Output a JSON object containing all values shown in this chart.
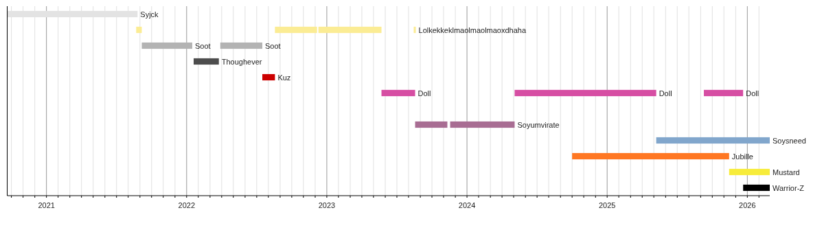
{
  "chart_data": {
    "type": "bar",
    "orientation": "horizontal",
    "categories": [
      null,
      null,
      null,
      null,
      null,
      null,
      null,
      null,
      null,
      null,
      null,
      null
    ],
    "series": [
      {
        "colors": [
          "#e3e3e3",
          "#fbec94",
          "#b3b3b3",
          "#4d4d4d",
          "#cc0000",
          "#d64ea3",
          null,
          "#a86d93",
          "#81a6cc",
          "#ff7722",
          "#f7ec3b",
          "#000000"
        ],
        "base": [
          2020.72,
          2021.64,
          2021.68,
          2022.05,
          2022.54,
          2023.39,
          null,
          2023.63,
          2025.35,
          2024.75,
          2025.87,
          2025.97
        ],
        "values": [
          0.93,
          0.04,
          0.36,
          0.18,
          0.09,
          0.24,
          null,
          0.23,
          0.81,
          1.12,
          0.29,
          0.19
        ],
        "value_labels": [
          "Syjck",
          null,
          "Soot",
          "Thoughever",
          "Kuz",
          "Doll",
          null,
          null,
          "Soysneed",
          "Jubille",
          "Mustard",
          "Warrior-Z"
        ]
      },
      {
        "colors": [
          null,
          "#fbec94",
          "#b3b3b3",
          null,
          null,
          "#d64ea3",
          null,
          "#a86d93",
          null,
          null,
          null,
          null
        ],
        "base": [
          null,
          2022.63,
          2022.24,
          null,
          null,
          2024.34,
          null,
          2023.88,
          null,
          null,
          null,
          null
        ],
        "values": [
          null,
          0.3,
          0.3,
          null,
          null,
          1.01,
          null,
          0.46,
          null,
          null,
          null,
          null
        ],
        "value_labels": [
          null,
          null,
          "Soot",
          null,
          null,
          "Doll",
          null,
          "Soyumvirate",
          null,
          null,
          null,
          null
        ]
      },
      {
        "colors": [
          null,
          "#fbec94",
          null,
          null,
          null,
          "#d64ea3",
          null,
          null,
          null,
          null,
          null,
          null
        ],
        "base": [
          null,
          2022.94,
          null,
          null,
          null,
          2025.69,
          null,
          null,
          null,
          null,
          null,
          null
        ],
        "values": [
          null,
          0.45,
          null,
          null,
          null,
          0.28,
          null,
          null,
          null,
          null,
          null,
          null
        ],
        "value_labels": [
          null,
          null,
          null,
          null,
          null,
          "Doll",
          null,
          null,
          null,
          null,
          null,
          null
        ]
      },
      {
        "colors": [
          null,
          "#fbec94",
          null,
          null,
          null,
          null,
          null,
          null,
          null,
          null,
          null,
          null
        ],
        "base": [
          null,
          2023.62,
          null,
          null,
          null,
          null,
          null,
          null,
          null,
          null,
          null,
          null
        ],
        "values": [
          null,
          0.015,
          null,
          null,
          null,
          null,
          null,
          null,
          null,
          null,
          null,
          null
        ],
        "value_labels": [
          null,
          "Lolkekkeklmaolmaolmaoxdhaha",
          null,
          null,
          null,
          null,
          null,
          null,
          null,
          null,
          null,
          null
        ]
      }
    ],
    "xlim": [
      2020.72,
      2026.16
    ],
    "xticks": [
      {
        "value": 2020.75,
        "label": null
      },
      {
        "value": 2020.833,
        "label": null
      },
      {
        "value": 2020.917,
        "label": null
      },
      2021,
      {
        "value": 2021.083,
        "label": null
      },
      {
        "value": 2021.167,
        "label": null
      },
      {
        "value": 2021.25,
        "label": null
      },
      {
        "value": 2021.333,
        "label": null
      },
      {
        "value": 2021.417,
        "label": null
      },
      {
        "value": 2021.5,
        "label": null
      },
      {
        "value": 2021.583,
        "label": null
      },
      {
        "value": 2021.667,
        "label": null
      },
      {
        "value": 2021.75,
        "label": null
      },
      {
        "value": 2021.833,
        "label": null
      },
      {
        "value": 2021.917,
        "label": null
      },
      2022,
      {
        "value": 2022.083,
        "label": null
      },
      {
        "value": 2022.167,
        "label": null
      },
      {
        "value": 2022.25,
        "label": null
      },
      {
        "value": 2022.333,
        "label": null
      },
      {
        "value": 2022.417,
        "label": null
      },
      {
        "value": 2022.5,
        "label": null
      },
      {
        "value": 2022.583,
        "label": null
      },
      {
        "value": 2022.667,
        "label": null
      },
      {
        "value": 2022.75,
        "label": null
      },
      {
        "value": 2022.833,
        "label": null
      },
      {
        "value": 2022.917,
        "label": null
      },
      2023,
      {
        "value": 2023.083,
        "label": null
      },
      {
        "value": 2023.167,
        "label": null
      },
      {
        "value": 2023.25,
        "label": null
      },
      {
        "value": 2023.333,
        "label": null
      },
      {
        "value": 2023.417,
        "label": null
      },
      {
        "value": 2023.5,
        "label": null
      },
      {
        "value": 2023.583,
        "label": null
      },
      {
        "value": 2023.667,
        "label": null
      },
      {
        "value": 2023.75,
        "label": null
      },
      {
        "value": 2023.833,
        "label": null
      },
      {
        "value": 2023.917,
        "label": null
      },
      2024,
      {
        "value": 2024.083,
        "label": null
      },
      {
        "value": 2024.167,
        "label": null
      },
      {
        "value": 2024.25,
        "label": null
      },
      {
        "value": 2024.333,
        "label": null
      },
      {
        "value": 2024.417,
        "label": null
      },
      {
        "value": 2024.5,
        "label": null
      },
      {
        "value": 2024.583,
        "label": null
      },
      {
        "value": 2024.667,
        "label": null
      },
      {
        "value": 2024.75,
        "label": null
      },
      {
        "value": 2024.833,
        "label": null
      },
      {
        "value": 2024.917,
        "label": null
      },
      2025,
      {
        "value": 2025.083,
        "label": null
      },
      {
        "value": 2025.167,
        "label": null
      },
      {
        "value": 2025.25,
        "label": null
      },
      {
        "value": 2025.333,
        "label": null
      },
      {
        "value": 2025.417,
        "label": null
      },
      {
        "value": 2025.5,
        "label": null
      },
      {
        "value": 2025.583,
        "label": null
      },
      {
        "value": 2025.667,
        "label": null
      },
      {
        "value": 2025.75,
        "label": null
      },
      {
        "value": 2025.833,
        "label": null
      },
      {
        "value": 2025.917,
        "label": null
      },
      2026,
      {
        "value": 2026.083,
        "label": null
      }
    ],
    "grid": "x"
  }
}
